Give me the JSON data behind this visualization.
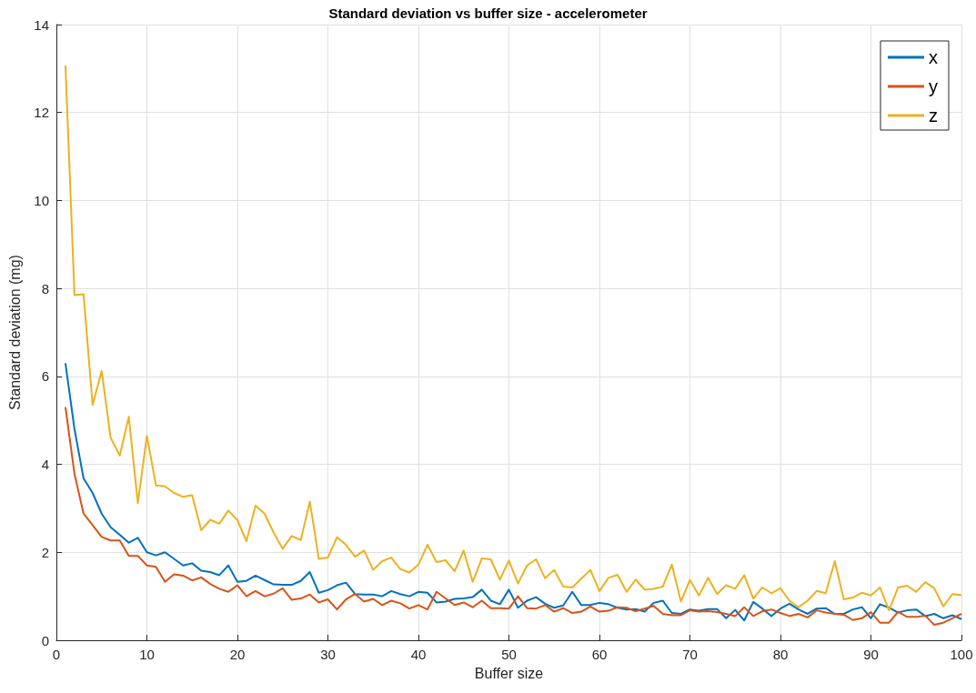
{
  "chart_data": {
    "type": "line",
    "title": "Standard deviation vs buffer size - accelerometer",
    "xlabel": "Buffer size",
    "ylabel": "Standard deviation (mg)",
    "x": [
      1,
      2,
      3,
      4,
      5,
      6,
      7,
      8,
      9,
      10,
      11,
      12,
      13,
      14,
      15,
      16,
      17,
      18,
      19,
      20,
      21,
      22,
      23,
      24,
      25,
      26,
      27,
      28,
      29,
      30,
      31,
      32,
      33,
      34,
      35,
      36,
      37,
      38,
      39,
      40,
      41,
      42,
      43,
      44,
      45,
      46,
      47,
      48,
      49,
      50,
      51,
      52,
      53,
      54,
      55,
      56,
      57,
      58,
      59,
      60,
      61,
      62,
      63,
      64,
      65,
      66,
      67,
      68,
      69,
      70,
      71,
      72,
      73,
      74,
      75,
      76,
      77,
      78,
      79,
      80,
      81,
      82,
      83,
      84,
      85,
      86,
      87,
      88,
      89,
      90,
      91,
      92,
      93,
      94,
      95,
      96,
      97,
      98,
      99,
      100
    ],
    "series": [
      {
        "name": "x",
        "color": "#0072bd",
        "values": [
          6.3,
          4.8,
          3.68,
          3.35,
          2.88,
          2.57,
          2.4,
          2.22,
          2.33,
          2.0,
          1.93,
          2.0,
          1.85,
          1.7,
          1.75,
          1.58,
          1.55,
          1.48,
          1.7,
          1.33,
          1.35,
          1.47,
          1.37,
          1.27,
          1.26,
          1.26,
          1.35,
          1.55,
          1.08,
          1.14,
          1.25,
          1.31,
          1.05,
          1.04,
          1.04,
          1.0,
          1.12,
          1.05,
          1.0,
          1.1,
          1.08,
          0.86,
          0.88,
          0.94,
          0.95,
          0.98,
          1.15,
          0.9,
          0.82,
          1.15,
          0.74,
          0.9,
          0.98,
          0.83,
          0.74,
          0.79,
          1.1,
          0.8,
          0.8,
          0.85,
          0.82,
          0.74,
          0.7,
          0.71,
          0.65,
          0.85,
          0.9,
          0.62,
          0.6,
          0.7,
          0.67,
          0.71,
          0.71,
          0.5,
          0.69,
          0.45,
          0.87,
          0.72,
          0.55,
          0.72,
          0.83,
          0.7,
          0.6,
          0.72,
          0.73,
          0.6,
          0.6,
          0.7,
          0.75,
          0.5,
          0.82,
          0.74,
          0.63,
          0.68,
          0.7,
          0.55,
          0.6,
          0.5,
          0.57,
          0.48
        ]
      },
      {
        "name": "y",
        "color": "#d95319",
        "values": [
          5.3,
          3.78,
          2.88,
          2.62,
          2.35,
          2.27,
          2.27,
          1.92,
          1.92,
          1.7,
          1.67,
          1.33,
          1.5,
          1.47,
          1.36,
          1.43,
          1.28,
          1.17,
          1.1,
          1.25,
          1.0,
          1.12,
          1.0,
          1.06,
          1.18,
          0.92,
          0.95,
          1.04,
          0.86,
          0.93,
          0.7,
          0.93,
          1.05,
          0.88,
          0.94,
          0.8,
          0.9,
          0.84,
          0.72,
          0.8,
          0.7,
          1.1,
          0.95,
          0.8,
          0.86,
          0.75,
          0.9,
          0.73,
          0.73,
          0.72,
          1.0,
          0.73,
          0.72,
          0.8,
          0.65,
          0.73,
          0.62,
          0.65,
          0.77,
          0.65,
          0.67,
          0.75,
          0.74,
          0.66,
          0.72,
          0.78,
          0.6,
          0.57,
          0.57,
          0.68,
          0.65,
          0.66,
          0.64,
          0.6,
          0.55,
          0.75,
          0.55,
          0.66,
          0.7,
          0.62,
          0.55,
          0.6,
          0.52,
          0.68,
          0.63,
          0.6,
          0.58,
          0.46,
          0.5,
          0.64,
          0.4,
          0.4,
          0.65,
          0.53,
          0.53,
          0.56,
          0.35,
          0.4,
          0.5,
          0.6
        ]
      },
      {
        "name": "z",
        "color": "#edb120",
        "values": [
          13.07,
          7.85,
          7.87,
          5.35,
          6.12,
          4.6,
          4.2,
          5.08,
          3.12,
          4.65,
          3.52,
          3.5,
          3.35,
          3.26,
          3.3,
          2.5,
          2.74,
          2.65,
          2.95,
          2.73,
          2.25,
          3.06,
          2.88,
          2.45,
          2.08,
          2.37,
          2.28,
          3.15,
          1.85,
          1.88,
          2.34,
          2.17,
          1.9,
          2.04,
          1.6,
          1.8,
          1.88,
          1.62,
          1.54,
          1.72,
          2.17,
          1.78,
          1.82,
          1.57,
          2.04,
          1.33,
          1.86,
          1.84,
          1.38,
          1.81,
          1.29,
          1.7,
          1.84,
          1.41,
          1.6,
          1.22,
          1.2,
          1.4,
          1.6,
          1.12,
          1.42,
          1.49,
          1.1,
          1.38,
          1.15,
          1.17,
          1.22,
          1.72,
          0.88,
          1.37,
          1.02,
          1.42,
          1.05,
          1.25,
          1.17,
          1.48,
          0.95,
          1.2,
          1.07,
          1.18,
          0.9,
          0.75,
          0.9,
          1.12,
          1.07,
          1.8,
          0.93,
          0.97,
          1.08,
          1.02,
          1.2,
          0.68,
          1.2,
          1.24,
          1.1,
          1.32,
          1.18,
          0.77,
          1.05,
          1.03
        ]
      }
    ],
    "xlim": [
      0,
      100
    ],
    "xticks": [
      0,
      10,
      20,
      30,
      40,
      50,
      60,
      70,
      80,
      90,
      100
    ],
    "ylim": [
      0,
      14
    ],
    "yticks": [
      0,
      2,
      4,
      6,
      8,
      10,
      12,
      14
    ],
    "grid": true,
    "legend": "top right",
    "marker": "none",
    "line_style": "solid"
  }
}
